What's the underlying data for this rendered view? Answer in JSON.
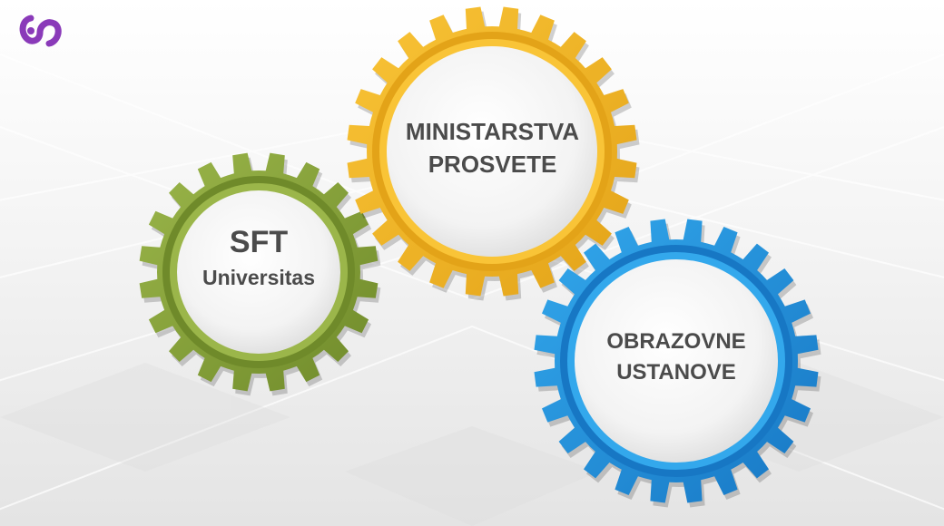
{
  "logo": {
    "icon": "sft-logo-icon",
    "color": "#8a3ab9"
  },
  "gears": [
    {
      "id": "sft",
      "line1": "SFT",
      "line2": "Universitas",
      "color_light": "#9bb64a",
      "color_dark": "#6f8a2a"
    },
    {
      "id": "ministarstva",
      "line1": "MINISTARSTVA",
      "line2": "PROSVETE",
      "color_light": "#f9c437",
      "color_dark": "#e3a318"
    },
    {
      "id": "obrazovne",
      "line1": "OBRAZOVNE",
      "line2": "USTANOVE",
      "color_light": "#33a8ec",
      "color_dark": "#1777c4"
    }
  ]
}
